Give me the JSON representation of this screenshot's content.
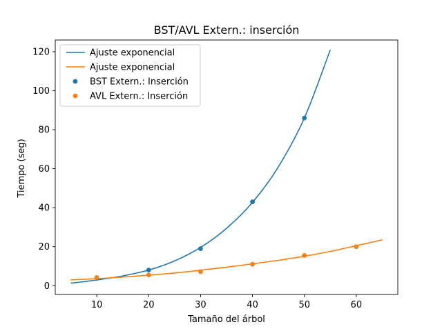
{
  "chart_data": {
    "type": "scatter",
    "title": "BST/AVL Extern.: inserción",
    "xlabel": "Tamaño del árbol",
    "ylabel": "Tiempo (seg)",
    "xlim": [
      2,
      68
    ],
    "ylim": [
      -4.5,
      126
    ],
    "x_ticks": [
      10,
      20,
      30,
      40,
      50,
      60
    ],
    "y_ticks": [
      0,
      20,
      40,
      60,
      80,
      100,
      120
    ],
    "grid": false,
    "legend_position": "top-left",
    "series": [
      {
        "name": "BST Extern.: Inserción",
        "kind": "scatter",
        "color": "#1f77b4",
        "x": [
          20,
          30,
          40,
          50
        ],
        "y": [
          8,
          19,
          43,
          86
        ]
      },
      {
        "name": "AVL Extern.: Inserción",
        "kind": "scatter",
        "color": "#ff7f0e",
        "x": [
          10,
          20,
          30,
          40,
          50,
          60
        ],
        "y": [
          4.2,
          5.5,
          7.2,
          11,
          15.5,
          20
        ]
      },
      {
        "name": "Ajuste exponencial",
        "kind": "line",
        "color": "#1f77b4",
        "x": [
          5,
          10,
          15,
          20,
          25,
          30,
          35,
          40,
          45,
          50,
          55
        ],
        "y": [
          1.3,
          2.9,
          5.0,
          8.0,
          12.7,
          19.6,
          29.4,
          42.7,
          61.0,
          86.0,
          121.0
        ]
      },
      {
        "name": "Ajuste exponencial",
        "kind": "line",
        "color": "#ff7f0e",
        "x": [
          5,
          10,
          15,
          20,
          25,
          30,
          35,
          40,
          45,
          50,
          55,
          60,
          65
        ],
        "y": [
          3.0,
          3.6,
          4.4,
          5.4,
          6.5,
          7.9,
          9.5,
          11.2,
          13.0,
          15.1,
          17.6,
          20.5,
          23.5
        ]
      }
    ],
    "legend_order": [
      2,
      3,
      0,
      1
    ]
  }
}
